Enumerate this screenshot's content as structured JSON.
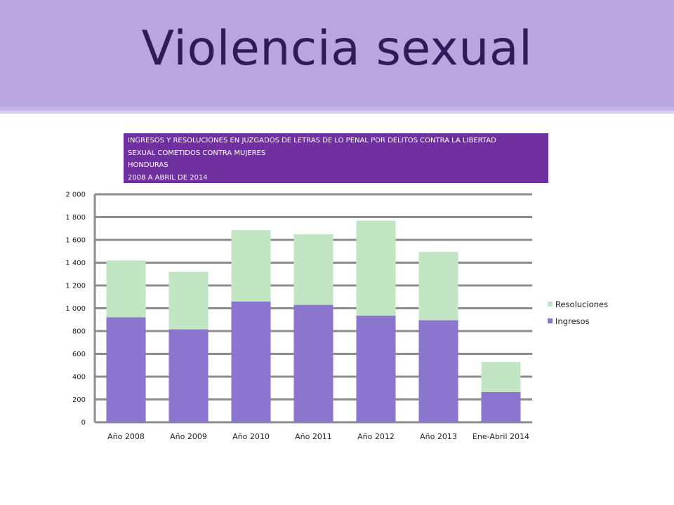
{
  "slide": {
    "title": "Violencia sexual"
  },
  "caption": {
    "lines": [
      "INGRESOS Y RESOLUCIONES EN JUZGADOS DE LETRAS DE LO PENAL POR DELITOS CONTRA LA LIBERTAD",
      "SEXUAL COMETIDOS CONTRA MUJERES",
      "HONDURAS",
      "2008 A ABRIL DE 2014"
    ]
  },
  "colors": {
    "header_band": "#b9a6e0",
    "title_text": "#2e1b57",
    "caption_bg": "#7030a0",
    "ingresos": "#8b75cf",
    "resoluciones": "#c2e6c4",
    "gridline": "#8c8c8c"
  },
  "chart_data": {
    "type": "bar",
    "stacked": true,
    "categories": [
      "Año 2008",
      "Año 2009",
      "Año 2010",
      "Año 2011",
      "Año 2012",
      "Año 2013",
      "Ene-Abril 2014"
    ],
    "series": [
      {
        "name": "Ingresos",
        "values": [
          920,
          815,
          1060,
          1030,
          935,
          895,
          265
        ],
        "color": "#8b75cf"
      },
      {
        "name": "Resoluciones",
        "values": [
          500,
          505,
          625,
          620,
          835,
          600,
          265
        ],
        "color": "#c2e6c4"
      }
    ],
    "ylim": [
      0,
      2000
    ],
    "yticks": [
      0,
      200,
      400,
      600,
      800,
      1000,
      1200,
      1400,
      1600,
      1800,
      2000
    ],
    "ytick_labels": [
      "0",
      "200",
      "400",
      "600",
      "800",
      "1 000",
      "1 200",
      "1 400",
      "1 600",
      "1 800",
      "2 000"
    ],
    "legend": {
      "position": "right",
      "entries": [
        "Resoluciones",
        "Ingresos"
      ]
    },
    "grid": true
  }
}
